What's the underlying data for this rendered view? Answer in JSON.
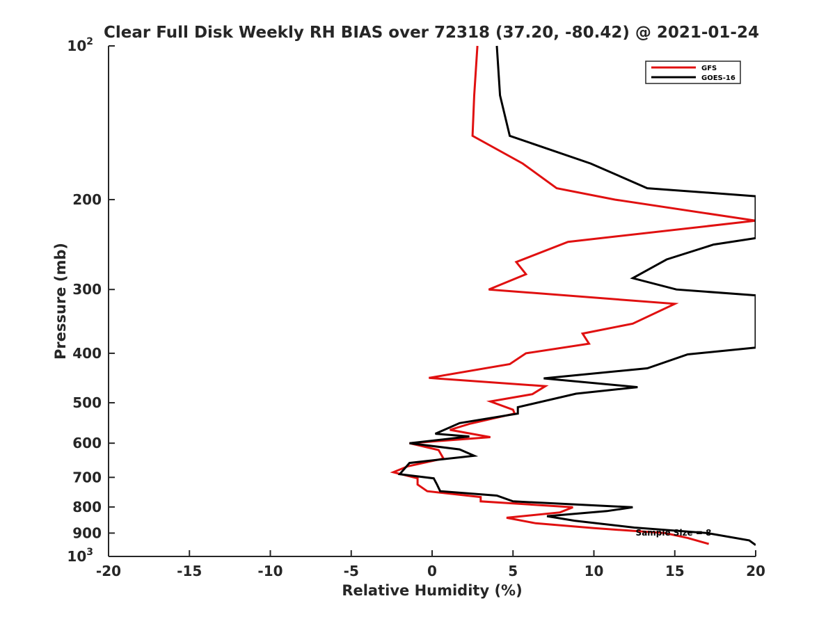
{
  "chart_data": {
    "type": "line",
    "title": "Clear Full Disk Weekly RH BIAS over 72318 (37.20, -80.42) @ 2021-01-24",
    "xlabel": "Relative Humidity (%)",
    "ylabel": "Pressure (mb)",
    "xlim": [
      -20,
      20
    ],
    "ylim": [
      100,
      1000
    ],
    "y_scale": "log",
    "y_reversed": true,
    "grid": false,
    "legend_position": "top-right",
    "x_ticks": [
      {
        "value": -20,
        "label": "-20"
      },
      {
        "value": -15,
        "label": "-15"
      },
      {
        "value": -10,
        "label": "-10"
      },
      {
        "value": -5,
        "label": "-5"
      },
      {
        "value": 0,
        "label": "0"
      },
      {
        "value": 5,
        "label": "5"
      },
      {
        "value": 10,
        "label": "10"
      },
      {
        "value": 15,
        "label": "15"
      },
      {
        "value": 20,
        "label": "20"
      }
    ],
    "y_ticks": [
      {
        "value": 100,
        "label": "10",
        "sup": "2"
      },
      {
        "value": 200,
        "label": "200"
      },
      {
        "value": 300,
        "label": "300"
      },
      {
        "value": 400,
        "label": "400"
      },
      {
        "value": 500,
        "label": "500"
      },
      {
        "value": 600,
        "label": "600"
      },
      {
        "value": 700,
        "label": "700"
      },
      {
        "value": 800,
        "label": "800"
      },
      {
        "value": 900,
        "label": "900"
      },
      {
        "value": 1000,
        "label": "10",
        "sup": "3"
      }
    ],
    "annotation": "Sample Size = 8",
    "series": [
      {
        "name": "GFS",
        "color": "#e01010",
        "points": [
          [
            2.8,
            100
          ],
          [
            2.6,
            125
          ],
          [
            2.5,
            150
          ],
          [
            5.6,
            170
          ],
          [
            7.7,
            190
          ],
          [
            11.3,
            200
          ],
          [
            20.0,
            220
          ],
          [
            8.4,
            242
          ],
          [
            5.2,
            265
          ],
          [
            5.8,
            280
          ],
          [
            3.5,
            300
          ],
          [
            15.0,
            320
          ],
          [
            12.4,
            350
          ],
          [
            9.3,
            366
          ],
          [
            9.7,
            383
          ],
          [
            5.8,
            400
          ],
          [
            4.8,
            420
          ],
          [
            -0.2,
            447
          ],
          [
            7.0,
            464
          ],
          [
            6.2,
            481
          ],
          [
            3.6,
            497
          ],
          [
            5.0,
            516
          ],
          [
            5.1,
            525
          ],
          [
            2.3,
            550
          ],
          [
            1.1,
            565
          ],
          [
            3.6,
            584
          ],
          [
            -1.4,
            600
          ],
          [
            0.4,
            619
          ],
          [
            0.7,
            643
          ],
          [
            -1.5,
            666
          ],
          [
            -2.4,
            684
          ],
          [
            -0.9,
            703
          ],
          [
            -0.9,
            723
          ],
          [
            -0.3,
            745
          ],
          [
            3.0,
            765
          ],
          [
            3.0,
            780
          ],
          [
            8.7,
            801
          ],
          [
            7.9,
            820
          ],
          [
            4.6,
            840
          ],
          [
            6.4,
            861
          ],
          [
            10.0,
            880
          ],
          [
            14.4,
            900
          ],
          [
            15.8,
            920
          ],
          [
            17.1,
            945
          ]
        ]
      },
      {
        "name": "GOES-16",
        "color": "#000000",
        "points": [
          [
            4.0,
            100
          ],
          [
            4.2,
            125
          ],
          [
            4.8,
            150
          ],
          [
            9.8,
            170
          ],
          [
            13.3,
            190
          ],
          [
            20.0,
            197
          ],
          [
            20.0,
            238
          ],
          [
            17.4,
            245
          ],
          [
            14.5,
            262
          ],
          [
            12.4,
            285
          ],
          [
            15.1,
            300
          ],
          [
            20.0,
            308
          ],
          [
            20.0,
            390
          ],
          [
            15.8,
            402
          ],
          [
            13.3,
            428
          ],
          [
            6.9,
            448
          ],
          [
            12.7,
            466
          ],
          [
            8.9,
            480
          ],
          [
            5.3,
            510
          ],
          [
            5.3,
            525
          ],
          [
            1.7,
            548
          ],
          [
            0.2,
            575
          ],
          [
            2.3,
            582
          ],
          [
            -1.4,
            600
          ],
          [
            1.7,
            617
          ],
          [
            2.6,
            635
          ],
          [
            -1.4,
            656
          ],
          [
            -2.0,
            690
          ],
          [
            0.1,
            703
          ],
          [
            0.3,
            723
          ],
          [
            0.5,
            745
          ],
          [
            4.0,
            760
          ],
          [
            5.0,
            780
          ],
          [
            12.4,
            801
          ],
          [
            10.8,
            815
          ],
          [
            7.1,
            834
          ],
          [
            8.8,
            851
          ],
          [
            12.5,
            878
          ],
          [
            17.0,
            900
          ],
          [
            19.6,
            930
          ],
          [
            20.0,
            950
          ]
        ]
      }
    ]
  }
}
